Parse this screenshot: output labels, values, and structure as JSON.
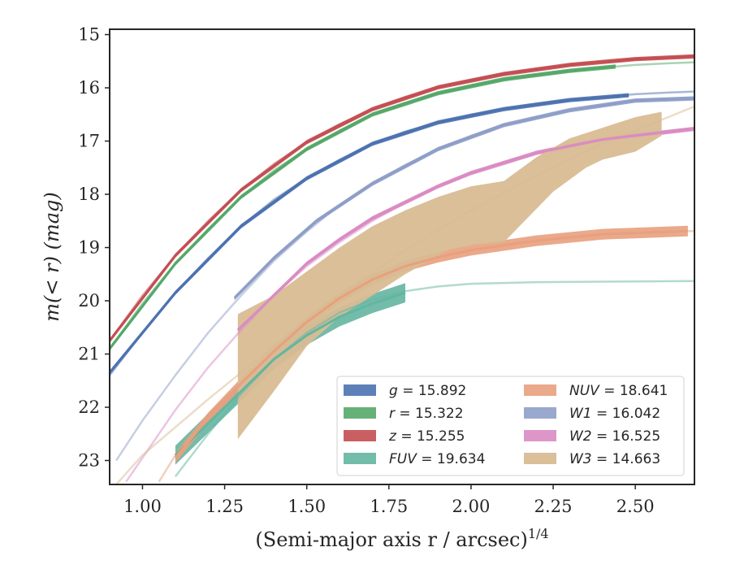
{
  "chart_data": {
    "type": "line",
    "xlabel": "(Semi-major axis r / arcsec)",
    "xlabel_sup": "1/4",
    "ylabel": "m(< r) (mag)",
    "xlim": [
      0.9,
      2.68
    ],
    "ylim": [
      23.45,
      14.9
    ],
    "y_inverted": true,
    "x_ticks": [
      1.0,
      1.25,
      1.5,
      1.75,
      2.0,
      2.25,
      2.5
    ],
    "x_tick_labels": [
      "1.00",
      "1.25",
      "1.50",
      "1.75",
      "2.00",
      "2.25",
      "2.50"
    ],
    "y_ticks": [
      15,
      16,
      17,
      18,
      19,
      20,
      21,
      22,
      23
    ],
    "y_tick_labels": [
      "15",
      "16",
      "17",
      "18",
      "19",
      "20",
      "21",
      "22",
      "23"
    ],
    "legend_position": "lower-right",
    "legend_columns": 2,
    "series": [
      {
        "name": "g",
        "legend_label": "g = 15.892",
        "color": "#4c72b0",
        "model": [
          [
            0.9,
            21.4
          ],
          [
            1.0,
            20.6
          ],
          [
            1.1,
            19.85
          ],
          [
            1.2,
            19.2
          ],
          [
            1.3,
            18.6
          ],
          [
            1.4,
            18.1
          ],
          [
            1.5,
            17.7
          ],
          [
            1.6,
            17.35
          ],
          [
            1.7,
            17.05
          ],
          [
            1.8,
            16.82
          ],
          [
            1.9,
            16.65
          ],
          [
            2.0,
            16.5
          ],
          [
            2.1,
            16.4
          ],
          [
            2.2,
            16.3
          ],
          [
            2.3,
            16.23
          ],
          [
            2.4,
            16.17
          ],
          [
            2.5,
            16.12
          ],
          [
            2.6,
            16.09
          ],
          [
            2.68,
            16.07
          ]
        ],
        "data": [
          [
            0.9,
            21.35
          ],
          [
            1.1,
            19.85
          ],
          [
            1.3,
            18.6
          ],
          [
            1.5,
            17.7
          ],
          [
            1.7,
            17.05
          ],
          [
            1.9,
            16.65
          ],
          [
            2.1,
            16.4
          ],
          [
            2.3,
            16.23
          ],
          [
            2.48,
            16.14
          ]
        ],
        "band": 0.04
      },
      {
        "name": "r",
        "legend_label": "r = 15.322",
        "color": "#55a868",
        "model": [
          [
            0.9,
            20.9
          ],
          [
            1.0,
            20.05
          ],
          [
            1.1,
            19.3
          ],
          [
            1.2,
            18.65
          ],
          [
            1.3,
            18.05
          ],
          [
            1.4,
            17.55
          ],
          [
            1.5,
            17.15
          ],
          [
            1.6,
            16.8
          ],
          [
            1.7,
            16.5
          ],
          [
            1.8,
            16.28
          ],
          [
            1.9,
            16.1
          ],
          [
            2.0,
            15.95
          ],
          [
            2.1,
            15.84
          ],
          [
            2.2,
            15.75
          ],
          [
            2.3,
            15.68
          ],
          [
            2.4,
            15.62
          ],
          [
            2.5,
            15.57
          ],
          [
            2.6,
            15.54
          ],
          [
            2.68,
            15.52
          ]
        ],
        "data": [
          [
            0.9,
            20.9
          ],
          [
            1.1,
            19.3
          ],
          [
            1.3,
            18.05
          ],
          [
            1.5,
            17.15
          ],
          [
            1.7,
            16.5
          ],
          [
            1.9,
            16.1
          ],
          [
            2.1,
            15.84
          ],
          [
            2.3,
            15.68
          ],
          [
            2.44,
            15.6
          ]
        ],
        "band": 0.04
      },
      {
        "name": "z",
        "legend_label": "z = 15.255",
        "color": "#c44e52",
        "model": [
          [
            0.9,
            20.75
          ],
          [
            1.0,
            19.9
          ],
          [
            1.1,
            19.15
          ],
          [
            1.2,
            18.5
          ],
          [
            1.3,
            17.92
          ],
          [
            1.4,
            17.43
          ],
          [
            1.5,
            17.02
          ],
          [
            1.6,
            16.68
          ],
          [
            1.7,
            16.4
          ],
          [
            1.8,
            16.17
          ],
          [
            1.9,
            15.99
          ],
          [
            2.0,
            15.85
          ],
          [
            2.1,
            15.74
          ],
          [
            2.2,
            15.64
          ],
          [
            2.3,
            15.57
          ],
          [
            2.4,
            15.51
          ],
          [
            2.5,
            15.46
          ],
          [
            2.6,
            15.43
          ],
          [
            2.68,
            15.41
          ]
        ],
        "data": [
          [
            0.9,
            20.75
          ],
          [
            1.1,
            19.15
          ],
          [
            1.3,
            17.92
          ],
          [
            1.5,
            17.02
          ],
          [
            1.7,
            16.4
          ],
          [
            1.9,
            15.99
          ],
          [
            2.1,
            15.74
          ],
          [
            2.3,
            15.57
          ],
          [
            2.5,
            15.46
          ],
          [
            2.68,
            15.41
          ]
        ],
        "band": 0.04
      },
      {
        "name": "FUV",
        "legend_label": "FUV = 19.634",
        "color": "#64b5a1",
        "model": [
          [
            1.1,
            23.3
          ],
          [
            1.2,
            22.5
          ],
          [
            1.3,
            21.75
          ],
          [
            1.4,
            21.1
          ],
          [
            1.5,
            20.6
          ],
          [
            1.6,
            20.22
          ],
          [
            1.7,
            19.98
          ],
          [
            1.8,
            19.82
          ],
          [
            1.9,
            19.73
          ],
          [
            2.0,
            19.68
          ],
          [
            2.2,
            19.65
          ],
          [
            2.4,
            19.64
          ],
          [
            2.68,
            19.63
          ]
        ],
        "data": [
          [
            1.1,
            22.9
          ],
          [
            1.2,
            22.3
          ],
          [
            1.3,
            21.7
          ],
          [
            1.4,
            21.1
          ],
          [
            1.5,
            20.65
          ],
          [
            1.6,
            20.3
          ],
          [
            1.7,
            20.05
          ],
          [
            1.8,
            19.85
          ]
        ],
        "band": 0.18
      },
      {
        "name": "NUV",
        "legend_label": "NUV = 18.641",
        "color": "#e8a07e",
        "model": [
          [
            1.05,
            23.4
          ],
          [
            1.1,
            22.9
          ],
          [
            1.2,
            22.2
          ],
          [
            1.3,
            21.55
          ],
          [
            1.4,
            20.95
          ],
          [
            1.5,
            20.4
          ],
          [
            1.6,
            19.95
          ],
          [
            1.7,
            19.6
          ],
          [
            1.8,
            19.35
          ],
          [
            1.9,
            19.18
          ],
          [
            2.0,
            19.05
          ],
          [
            2.1,
            18.95
          ],
          [
            2.2,
            18.87
          ],
          [
            2.3,
            18.8
          ],
          [
            2.4,
            18.75
          ],
          [
            2.5,
            18.72
          ],
          [
            2.6,
            18.7
          ],
          [
            2.68,
            18.69
          ]
        ],
        "data": [
          [
            1.1,
            22.95
          ],
          [
            1.2,
            22.2
          ],
          [
            1.3,
            21.55
          ],
          [
            1.4,
            20.95
          ],
          [
            1.5,
            20.4
          ],
          [
            1.6,
            19.95
          ],
          [
            1.7,
            19.6
          ],
          [
            1.8,
            19.35
          ],
          [
            1.9,
            19.18
          ],
          [
            2.0,
            19.05
          ],
          [
            2.2,
            18.87
          ],
          [
            2.4,
            18.75
          ],
          [
            2.66,
            18.69
          ]
        ],
        "band": 0.1
      },
      {
        "name": "W1",
        "legend_label": "W1 = 16.042",
        "color": "#8e9ec8",
        "model": [
          [
            0.92,
            23.0
          ],
          [
            1.0,
            22.25
          ],
          [
            1.1,
            21.4
          ],
          [
            1.2,
            20.6
          ],
          [
            1.3,
            19.9
          ],
          [
            1.4,
            19.25
          ],
          [
            1.5,
            18.7
          ],
          [
            1.6,
            18.2
          ],
          [
            1.7,
            17.8
          ],
          [
            1.8,
            17.45
          ],
          [
            1.9,
            17.15
          ],
          [
            2.0,
            16.9
          ],
          [
            2.1,
            16.7
          ],
          [
            2.2,
            16.55
          ],
          [
            2.3,
            16.42
          ],
          [
            2.4,
            16.32
          ],
          [
            2.5,
            16.24
          ],
          [
            2.6,
            16.2
          ],
          [
            2.68,
            16.18
          ]
        ],
        "data": [
          [
            1.28,
            19.95
          ],
          [
            1.4,
            19.2
          ],
          [
            1.53,
            18.5
          ],
          [
            1.7,
            17.8
          ],
          [
            1.9,
            17.15
          ],
          [
            2.1,
            16.7
          ],
          [
            2.3,
            16.42
          ],
          [
            2.5,
            16.24
          ],
          [
            2.68,
            16.2
          ]
        ],
        "band": 0.04
      },
      {
        "name": "W2",
        "legend_label": "W2 = 16.525",
        "color": "#da8bc3",
        "model": [
          [
            0.95,
            23.4
          ],
          [
            1.0,
            22.95
          ],
          [
            1.1,
            22.05
          ],
          [
            1.2,
            21.25
          ],
          [
            1.3,
            20.55
          ],
          [
            1.4,
            19.9
          ],
          [
            1.5,
            19.35
          ],
          [
            1.6,
            18.9
          ],
          [
            1.7,
            18.5
          ],
          [
            1.8,
            18.15
          ],
          [
            1.9,
            17.85
          ],
          [
            2.0,
            17.6
          ],
          [
            2.1,
            17.4
          ],
          [
            2.2,
            17.22
          ],
          [
            2.3,
            17.08
          ],
          [
            2.4,
            16.97
          ],
          [
            2.5,
            16.88
          ],
          [
            2.6,
            16.81
          ],
          [
            2.68,
            16.77
          ]
        ],
        "data": [
          [
            1.29,
            20.55
          ],
          [
            1.4,
            19.9
          ],
          [
            1.5,
            19.3
          ],
          [
            1.6,
            18.85
          ],
          [
            1.7,
            18.45
          ],
          [
            1.8,
            18.15
          ],
          [
            1.9,
            17.85
          ],
          [
            2.0,
            17.6
          ],
          [
            2.2,
            17.22
          ],
          [
            2.4,
            16.97
          ],
          [
            2.68,
            16.77
          ]
        ],
        "band": 0.04
      },
      {
        "name": "W3",
        "legend_label": "W3 = 14.663",
        "color": "#d8bc94",
        "model": [
          [
            0.92,
            23.45
          ],
          [
            1.0,
            22.9
          ],
          [
            1.2,
            21.85
          ],
          [
            1.4,
            20.85
          ],
          [
            1.6,
            19.9
          ],
          [
            1.8,
            19.05
          ],
          [
            2.0,
            18.3
          ],
          [
            2.2,
            17.65
          ],
          [
            2.4,
            17.05
          ],
          [
            2.6,
            16.55
          ],
          [
            2.68,
            16.35
          ]
        ],
        "data": [],
        "band_poly": [
          [
            1.29,
            20.25
          ],
          [
            1.4,
            19.9
          ],
          [
            1.5,
            19.45
          ],
          [
            1.6,
            19.0
          ],
          [
            1.7,
            18.6
          ],
          [
            1.8,
            18.3
          ],
          [
            1.9,
            18.05
          ],
          [
            2.0,
            17.85
          ],
          [
            2.1,
            17.75
          ],
          [
            2.2,
            17.3
          ],
          [
            2.3,
            16.95
          ],
          [
            2.4,
            16.75
          ],
          [
            2.5,
            16.55
          ],
          [
            2.58,
            16.45
          ],
          [
            2.58,
            16.9
          ],
          [
            2.5,
            17.2
          ],
          [
            2.4,
            17.35
          ],
          [
            2.35,
            17.5
          ],
          [
            2.25,
            17.95
          ],
          [
            2.1,
            18.9
          ],
          [
            2.0,
            18.95
          ],
          [
            1.93,
            19.05
          ],
          [
            1.8,
            19.5
          ],
          [
            1.7,
            19.9
          ],
          [
            1.6,
            20.3
          ],
          [
            1.5,
            20.85
          ],
          [
            1.4,
            21.7
          ],
          [
            1.29,
            22.6
          ]
        ]
      }
    ]
  }
}
